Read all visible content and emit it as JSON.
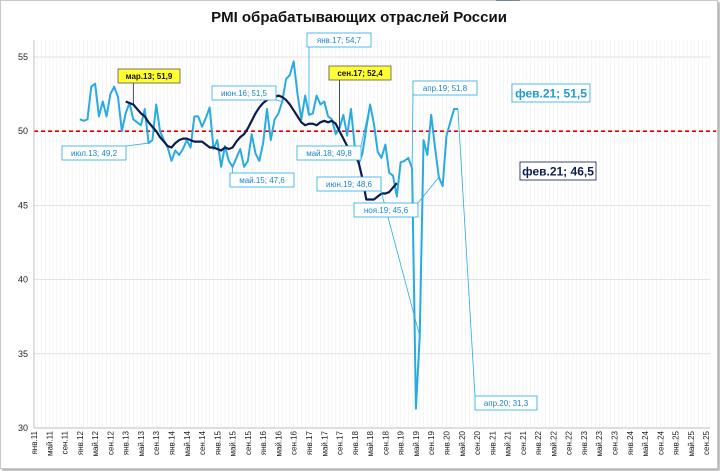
{
  "chart_data": {
    "type": "line",
    "title": "PMI обрабатывающих отраслей России",
    "xlabel": "",
    "ylabel": "",
    "ylim": [
      30,
      56
    ],
    "yticks": [
      30,
      35,
      40,
      45,
      50,
      55
    ],
    "reference_line": {
      "value": 50,
      "color": "#e00000",
      "style": "dashed"
    },
    "grid": true,
    "x_tick_labels": [
      "янв.11",
      "май.11",
      "сен.11",
      "янв.12",
      "май.12",
      "сен.12",
      "янв.13",
      "май.13",
      "сен.13",
      "янв.14",
      "май.14",
      "сен.14",
      "янв.15",
      "май.15",
      "сен.15",
      "янв.16",
      "май.16",
      "сен.16",
      "янв.17",
      "май.17",
      "сен.17",
      "янв.18",
      "май.18",
      "сен.18",
      "янв.19",
      "май.19",
      "сен.19",
      "янв.20",
      "май.20",
      "сен.20",
      "янв.21",
      "май.21",
      "сен.21",
      "янв.22",
      "май.22",
      "сен.22",
      "янв.23",
      "май.23",
      "сен.23",
      "янв.24",
      "май.24",
      "сен.24",
      "янв.25",
      "май.25",
      "сен.25"
    ],
    "series": [
      {
        "name": "",
        "color": "#29abe2",
        "start_month_index": 12,
        "values": [
          50.8,
          50.7,
          50.8,
          53,
          53.2,
          51,
          52,
          51,
          52.5,
          53,
          52.3,
          50,
          51.2,
          51.9,
          50.8,
          50.6,
          50.4,
          51.5,
          49.2,
          49.4,
          51.8,
          50,
          49.4,
          48.9,
          48,
          48.7,
          48.4,
          48.8,
          49.4,
          48.9,
          51,
          51,
          50.3,
          50.9,
          51.6,
          48.8,
          49.4,
          47.6,
          49,
          48,
          47.6,
          48.2,
          48.8,
          47.6,
          48,
          49.8,
          48.5,
          48,
          49.2,
          51.5,
          49.4,
          50.8,
          51.2,
          52,
          53.5,
          53.8,
          54.7,
          52.5,
          50.8,
          52.4,
          51.1,
          51.2,
          52.4,
          51.8,
          52,
          51,
          50.8,
          49.8,
          50.2,
          51.1,
          49.7,
          51.5,
          48.9,
          47.8,
          48.5,
          50.2,
          51.8,
          50.5,
          48.6,
          48.2,
          49.1,
          47.2,
          47,
          45.6,
          47.9,
          48,
          48.2,
          47.5,
          31.3,
          36.2,
          49.4,
          48.4,
          51.1,
          48.9,
          46.9,
          46.3,
          49.7,
          50.6,
          51.5,
          51.5
        ],
        "labels_points": [
          {
            "text": "июл.13; 49,2"
          },
          {
            "text": "май.15; 47,6"
          },
          {
            "text": "июн.16; 51,5"
          },
          {
            "text": "янв.17; 54,7"
          },
          {
            "text": "май.18; 49,8"
          },
          {
            "text": "апр.19; 51,8"
          },
          {
            "text": "июн.19; 48,6"
          },
          {
            "text": "ноя.19; 45,6"
          },
          {
            "text": "апр.20; 31,3"
          },
          {
            "text": "фев.21; 51,5"
          }
        ]
      },
      {
        "name": "",
        "color": "#0b1d4f",
        "start_month_index": 24,
        "values": [
          52,
          51.9,
          51.8,
          51.5,
          51.2,
          51,
          50.6,
          50.3,
          50,
          49.6,
          49.3,
          49,
          48.9,
          49.2,
          49.4,
          49.5,
          49.5,
          49.4,
          49.3,
          49.3,
          49.3,
          49.1,
          48.9,
          48.9,
          48.8,
          48.7,
          48.9,
          48.8,
          48.9,
          49.3,
          49.6,
          49.8,
          50.2,
          50.7,
          51.2,
          51.6,
          51.9,
          52.1,
          52.3,
          52.3,
          52.4,
          52.3,
          52.1,
          51.8,
          51.4,
          51,
          50.6,
          50.4,
          50.5,
          50.5,
          50.4,
          50.6,
          50.7,
          50.6,
          50.7,
          50.5,
          50,
          49.5,
          49,
          48.7,
          48.4,
          47.9,
          46.8,
          45.4,
          45.4,
          45.4,
          45.6,
          45.8,
          45.8,
          45.9,
          46.2,
          46.5
        ],
        "labels_points": [
          {
            "text": "мар.13; 51,9"
          },
          {
            "text": "сен.17; 52,4"
          },
          {
            "text": "фев.21; 46,5"
          }
        ]
      }
    ]
  }
}
